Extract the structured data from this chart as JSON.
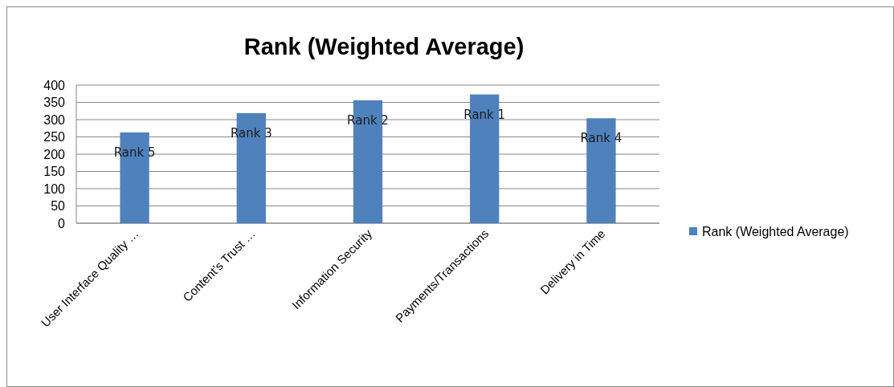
{
  "chart_data": {
    "type": "bar",
    "title": "Rank (Weighted Average)",
    "categories": [
      "User Interface Quality …",
      "Content’s Trust …",
      "Information Security",
      "Payments/Transactions",
      "Delivery in Time"
    ],
    "series": [
      {
        "name": "Rank (Weighted Average)",
        "color": "#4f81bd",
        "values": [
          263,
          319,
          356,
          373,
          304
        ],
        "value_labels": [
          "Rank 5",
          "Rank 3",
          "Rank 2",
          "Rank 1",
          "Rank 4"
        ]
      }
    ],
    "ylim": [
      0,
      400
    ],
    "yticks": [
      0,
      50,
      100,
      150,
      200,
      250,
      300,
      350,
      400
    ],
    "grid": "y",
    "legend": "right"
  }
}
